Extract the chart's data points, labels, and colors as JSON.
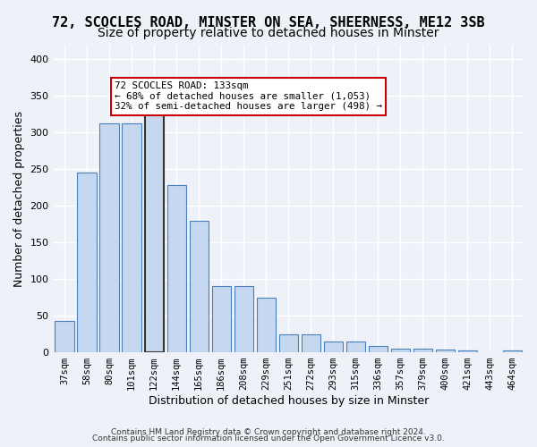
{
  "title_line1": "72, SCOCLES ROAD, MINSTER ON SEA, SHEERNESS, ME12 3SB",
  "title_line2": "Size of property relative to detached houses in Minster",
  "xlabel": "Distribution of detached houses by size in Minster",
  "ylabel": "Number of detached properties",
  "categories": [
    "37sqm",
    "58sqm",
    "80sqm",
    "101sqm",
    "122sqm",
    "144sqm",
    "165sqm",
    "186sqm",
    "208sqm",
    "229sqm",
    "251sqm",
    "272sqm",
    "293sqm",
    "315sqm",
    "336sqm",
    "357sqm",
    "379sqm",
    "400sqm",
    "421sqm",
    "443sqm",
    "464sqm"
  ],
  "values": [
    43,
    246,
    312,
    312,
    335,
    228,
    180,
    91,
    91,
    74,
    25,
    25,
    15,
    15,
    9,
    5,
    5,
    4,
    3,
    0,
    3
  ],
  "bar_color": "#c5d8f0",
  "bar_edge_color": "#4a7fbd",
  "highlight_index": 4,
  "highlight_edge_color": "#333333",
  "ylim": [
    0,
    420
  ],
  "yticks": [
    0,
    50,
    100,
    150,
    200,
    250,
    300,
    350,
    400
  ],
  "annotation_text": "72 SCOCLES ROAD: 133sqm\n← 68% of detached houses are smaller (1,053)\n32% of semi-detached houses are larger (498) →",
  "annotation_box_color": "#ffffff",
  "annotation_box_edge": "#cc0000",
  "footer_line1": "Contains HM Land Registry data © Crown copyright and database right 2024.",
  "footer_line2": "Contains public sector information licensed under the Open Government Licence v3.0.",
  "bg_color": "#eef2f8",
  "plot_bg_color": "#eef2f8",
  "grid_color": "#ffffff",
  "title_fontsize": 11,
  "subtitle_fontsize": 10,
  "tick_fontsize": 7.5,
  "ylabel_fontsize": 9,
  "xlabel_fontsize": 9
}
